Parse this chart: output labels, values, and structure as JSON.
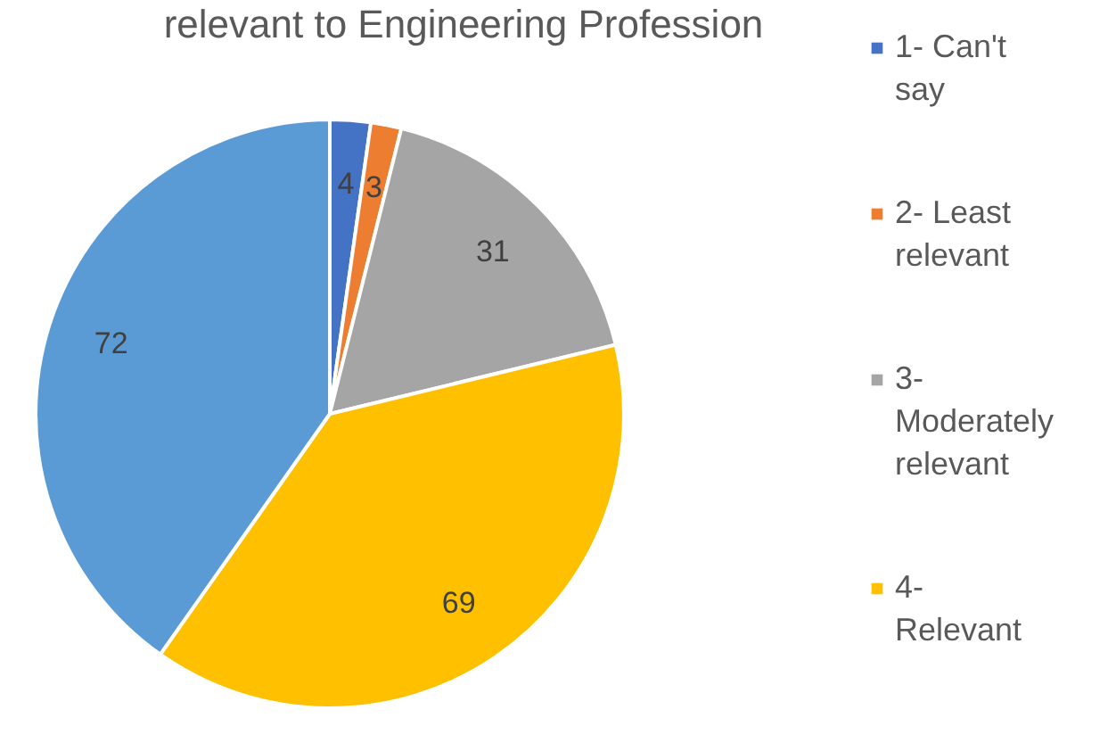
{
  "chart_data": {
    "type": "pie",
    "title": "relevant to Engineering Profession",
    "categories": [
      "1- Can't say",
      "2- Least relevant",
      "3- Moderately relevant",
      "4- Relevant",
      null
    ],
    "values": [
      4,
      3,
      31,
      69,
      72
    ],
    "colors": [
      "#4472c4",
      "#ed7d31",
      "#a5a5a5",
      "#ffc000",
      "#5b9bd5"
    ],
    "data_labels": true,
    "legend": "right"
  }
}
